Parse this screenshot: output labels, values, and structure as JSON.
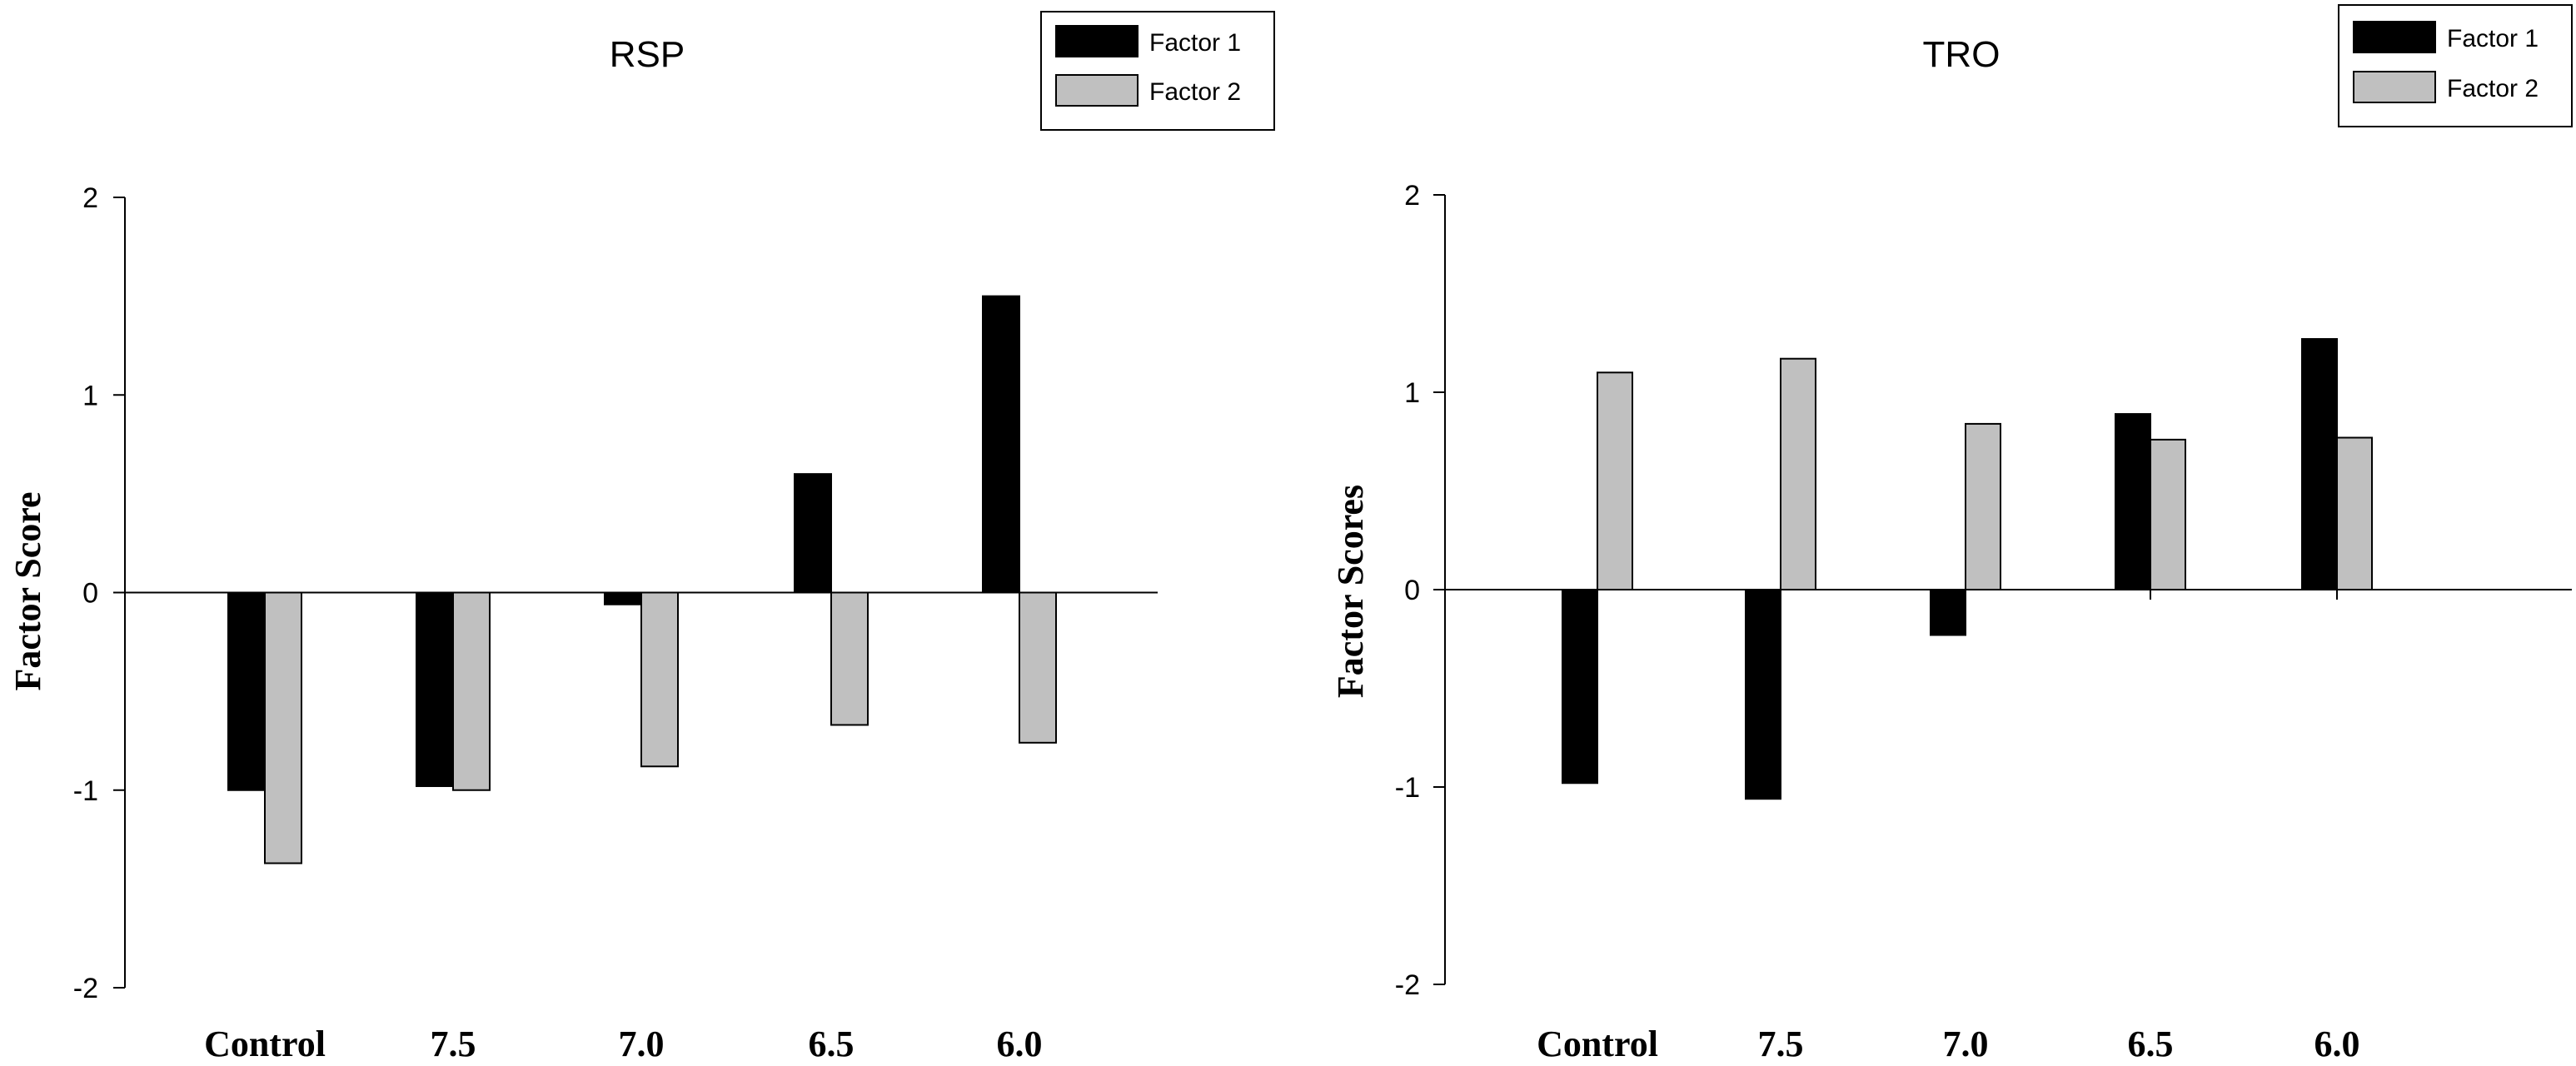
{
  "chart_data": [
    {
      "type": "bar",
      "title": "RSP",
      "xlabel": "",
      "ylabel": "Factor Score",
      "ylim": [
        -2,
        2
      ],
      "yticks": [
        "2",
        "1",
        "0",
        "-1",
        "-2"
      ],
      "yticks_values": [
        2,
        1,
        0,
        -1,
        -2
      ],
      "categories": [
        "Control",
        "7.5",
        "7.0",
        "6.5",
        "6.0"
      ],
      "series": [
        {
          "name": "Factor 1",
          "color": "#000000",
          "values": [
            -1.0,
            -0.98,
            -0.06,
            0.6,
            1.5
          ]
        },
        {
          "name": "Factor 2",
          "color": "#c0c0c0",
          "values": [
            -1.37,
            -1.0,
            -0.88,
            -0.67,
            -0.76
          ]
        }
      ],
      "legend_position": "top-right"
    },
    {
      "type": "bar",
      "title": "TRO",
      "xlabel": "",
      "ylabel": "Factor Scores",
      "ylim": [
        -2,
        2
      ],
      "yticks": [
        "2",
        "1",
        "0",
        "-1",
        "-2"
      ],
      "yticks_values": [
        2,
        1,
        0,
        -1,
        -2
      ],
      "categories": [
        "Control",
        "7.5",
        "7.0",
        "6.5",
        "6.0"
      ],
      "series": [
        {
          "name": "Factor 1",
          "color": "#000000",
          "values": [
            -0.98,
            -1.06,
            -0.23,
            0.89,
            1.27
          ]
        },
        {
          "name": "Factor 2",
          "color": "#c0c0c0",
          "values": [
            1.1,
            1.17,
            0.84,
            0.76,
            0.77
          ]
        }
      ],
      "legend_position": "top-right"
    }
  ]
}
